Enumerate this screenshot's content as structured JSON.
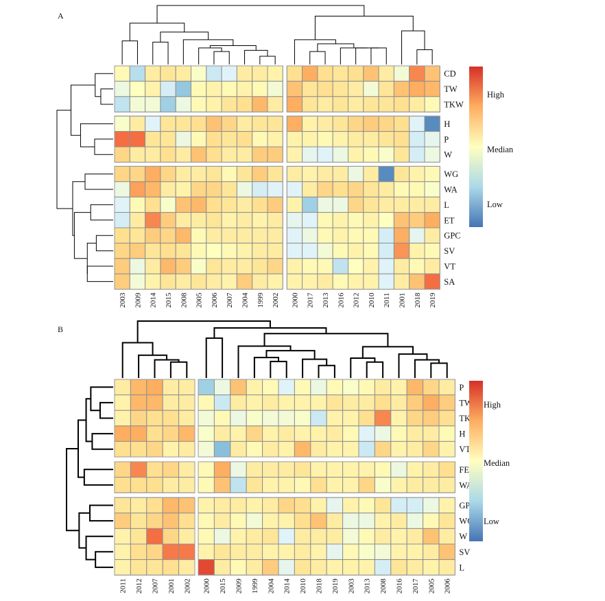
{
  "colors": {
    "high": "#d73027",
    "upper": "#f46d43",
    "warm": "#fdae61",
    "mid_warm": "#fee090",
    "median": "#ffffbf",
    "mid_cool": "#e0f3f8",
    "cool": "#abd9e9",
    "low_cool": "#74add1",
    "low": "#4575b4",
    "grid": "#8f8f8f"
  },
  "chart_data": [
    {
      "type": "heatmap",
      "panel": "A",
      "rows": [
        "CD",
        "TW",
        "TKW",
        "H",
        "P",
        "W",
        "WG",
        "WA",
        "L",
        "ET",
        "GPC",
        "SV",
        "VT",
        "SA"
      ],
      "row_groups": [
        3,
        3,
        8
      ],
      "columns": [
        "2003",
        "2009",
        "2014",
        "2015",
        "2008",
        "2005",
        "2006",
        "2007",
        "2004",
        "1999",
        "2002",
        "2000",
        "2017",
        "2013",
        "2016",
        "2012",
        "2010",
        "2011",
        "2001",
        "2018",
        "2019"
      ],
      "column_groups": [
        11,
        10
      ],
      "value_range": [
        -2,
        2
      ],
      "values": [
        [
          0.1,
          -0.9,
          0.3,
          0.4,
          0.3,
          -0.1,
          -0.7,
          -0.5,
          0.3,
          0.3,
          0.2,
          0.5,
          1.0,
          0.5,
          0.4,
          0.5,
          0.8,
          0.3,
          -0.2,
          1.3,
          0.8
        ],
        [
          -0.3,
          0.0,
          0.2,
          -0.6,
          -1.2,
          0.1,
          0.2,
          0.1,
          0.2,
          0.1,
          -0.2,
          0.8,
          0.4,
          0.5,
          0.4,
          0.3,
          -0.2,
          0.4,
          0.8,
          1.0,
          0.9
        ],
        [
          -0.8,
          -0.2,
          -0.2,
          -1.1,
          -0.3,
          0.1,
          0.2,
          0.4,
          0.5,
          0.9,
          0.3,
          1.0,
          0.4,
          0.3,
          0.4,
          0.3,
          0.4,
          0.4,
          0.5,
          0.3,
          0.1
        ],
        [
          -0.1,
          0.3,
          -0.5,
          0.4,
          0.4,
          0.5,
          0.8,
          0.6,
          0.3,
          0.4,
          0.4,
          1.0,
          0.2,
          0.3,
          0.4,
          0.6,
          0.7,
          0.6,
          0.5,
          -0.5,
          -1.8
        ],
        [
          1.5,
          1.5,
          0.4,
          0.4,
          -0.3,
          0.1,
          0.5,
          0.4,
          0.5,
          0.1,
          0.2,
          0.2,
          0.2,
          0.1,
          0.2,
          0.3,
          0.3,
          0.4,
          0.5,
          -0.6,
          -0.4
        ],
        [
          0.6,
          0.3,
          0.3,
          0.5,
          0.3,
          0.8,
          0.5,
          0.3,
          0.3,
          0.7,
          0.7,
          0.2,
          -0.4,
          -0.5,
          -0.3,
          0.2,
          0.1,
          -0.1,
          0.4,
          -0.6,
          -0.3
        ],
        [
          0.6,
          0.6,
          1.0,
          0.6,
          0.3,
          0.3,
          0.4,
          0.1,
          0.4,
          0.7,
          0.4,
          0.3,
          0.2,
          0.3,
          0.3,
          -0.3,
          0.3,
          -1.8,
          0.4,
          0.2,
          0.1
        ],
        [
          -0.3,
          1.1,
          0.9,
          0.3,
          0.2,
          0.6,
          0.6,
          0.4,
          -0.3,
          -0.6,
          -0.5,
          -0.5,
          0.3,
          0.6,
          0.5,
          0.6,
          0.4,
          0.3,
          0.1,
          0.1,
          -0.1
        ],
        [
          -0.5,
          0.1,
          0.5,
          -0.1,
          0.8,
          0.9,
          0.5,
          0.4,
          0.3,
          0.5,
          0.7,
          0.2,
          -1.1,
          -0.3,
          -0.3,
          0.6,
          0.4,
          0.3,
          0.3,
          0.3,
          0.3
        ],
        [
          -0.6,
          0.3,
          1.3,
          0.7,
          0.3,
          0.3,
          0.4,
          0.2,
          0.3,
          0.2,
          0.3,
          -0.4,
          -0.5,
          0.1,
          0.2,
          0.1,
          0.2,
          0.0,
          0.8,
          0.7,
          1.0
        ],
        [
          0.5,
          0.4,
          0.7,
          0.6,
          0.9,
          0.1,
          0.3,
          0.3,
          0.3,
          0.3,
          0.3,
          -0.5,
          -0.3,
          0.1,
          0.2,
          0.1,
          0.1,
          -0.6,
          1.0,
          -0.4,
          0.3
        ],
        [
          0.6,
          0.7,
          0.4,
          0.5,
          0.4,
          0.1,
          0.0,
          0.1,
          0.2,
          0.3,
          0.3,
          -0.5,
          -0.5,
          -0.2,
          0.1,
          0.2,
          0.1,
          -0.6,
          1.2,
          0.2,
          0.1
        ],
        [
          0.7,
          -0.3,
          0.3,
          0.9,
          0.7,
          -0.1,
          0.4,
          0.3,
          0.3,
          0.4,
          0.6,
          0.2,
          0.1,
          0.1,
          -0.8,
          0.0,
          0.2,
          -0.5,
          0.3,
          0.1,
          0.3
        ],
        [
          0.7,
          -0.2,
          0.2,
          0.4,
          0.3,
          0.4,
          0.3,
          0.2,
          0.7,
          0.3,
          0.2,
          0.2,
          0.2,
          0.3,
          0.1,
          0.2,
          0.2,
          -0.5,
          0.3,
          0.8,
          1.5
        ]
      ]
    },
    {
      "type": "heatmap",
      "panel": "B",
      "rows": [
        "P",
        "TW",
        "TKW",
        "H",
        "VT",
        "FER",
        "WA",
        "GPC",
        "WG",
        "W",
        "SV",
        "L"
      ],
      "row_groups": [
        5,
        2,
        5
      ],
      "columns": [
        "2011",
        "2012",
        "2007",
        "2001",
        "2002",
        "2000",
        "2015",
        "2009",
        "1999",
        "2004",
        "2014",
        "2010",
        "2018",
        "2019",
        "2003",
        "2013",
        "2008",
        "2016",
        "2017",
        "2005",
        "2006"
      ],
      "column_groups": [
        5,
        16
      ],
      "value_range": [
        -2,
        2
      ],
      "values": [
        [
          0.3,
          0.9,
          1.0,
          0.3,
          0.3,
          -1.1,
          -0.3,
          0.8,
          0.2,
          0.1,
          -0.5,
          0.1,
          -0.3,
          0.1,
          -0.1,
          0.1,
          0.3,
          0.2,
          0.9,
          0.6,
          0.3
        ],
        [
          0.2,
          0.9,
          0.9,
          0.3,
          0.3,
          0.1,
          -0.7,
          0.3,
          0.2,
          0.3,
          0.2,
          0.2,
          0.2,
          0.4,
          0.3,
          0.3,
          0.5,
          0.3,
          0.7,
          1.0,
          0.7
        ],
        [
          0.2,
          0.6,
          0.5,
          0.5,
          0.3,
          -0.2,
          0.1,
          -0.3,
          -0.1,
          -0.2,
          -0.2,
          -0.1,
          -0.7,
          0.2,
          0.2,
          0.5,
          1.3,
          0.2,
          0.6,
          0.7,
          0.5
        ],
        [
          1.0,
          1.0,
          0.5,
          0.6,
          0.9,
          -0.1,
          0.3,
          0.2,
          0.6,
          0.2,
          0.3,
          0.2,
          0.2,
          0.3,
          0.1,
          -0.5,
          -0.3,
          0.1,
          0.3,
          0.3,
          0.1
        ],
        [
          0.5,
          0.5,
          0.6,
          0.2,
          0.3,
          -0.2,
          -1.3,
          0.3,
          0.1,
          0.3,
          0.2,
          0.9,
          0.3,
          0.2,
          0.2,
          -0.7,
          0.6,
          0.2,
          0.3,
          0.6,
          0.2
        ],
        [
          0.6,
          1.3,
          0.5,
          0.6,
          0.3,
          0.1,
          1.0,
          -0.3,
          0.3,
          0.3,
          0.3,
          0.4,
          0.2,
          0.2,
          0.2,
          0.2,
          0.1,
          -0.3,
          0.2,
          0.3,
          0.5
        ],
        [
          0.5,
          0.5,
          0.5,
          0.3,
          0.3,
          0.1,
          0.8,
          -0.8,
          0.4,
          0.2,
          0.2,
          0.1,
          0.5,
          0.2,
          0.2,
          0.6,
          -0.1,
          0.2,
          0.3,
          0.3,
          0.3
        ],
        [
          0.4,
          0.3,
          0.5,
          0.9,
          0.8,
          0.2,
          0.3,
          0.3,
          0.2,
          0.3,
          0.6,
          0.5,
          0.2,
          -0.4,
          0.2,
          0.1,
          0.4,
          -0.6,
          -0.6,
          -0.3,
          0.2
        ],
        [
          0.7,
          0.4,
          0.6,
          0.8,
          0.5,
          0.1,
          0.3,
          0.1,
          -0.2,
          0.2,
          0.2,
          0.5,
          0.8,
          0.3,
          -0.3,
          -0.3,
          0.2,
          0.3,
          -0.3,
          0.1,
          0.4
        ],
        [
          0.2,
          0.4,
          1.5,
          0.6,
          0.3,
          0.1,
          -0.3,
          0.2,
          0.3,
          0.4,
          -0.5,
          0.3,
          0.3,
          0.3,
          -0.2,
          0.1,
          0.3,
          0.2,
          0.3,
          0.8,
          0.3
        ],
        [
          0.2,
          0.5,
          0.6,
          1.4,
          1.4,
          0.2,
          0.4,
          0.3,
          0.3,
          0.2,
          0.2,
          0.3,
          0.2,
          -0.4,
          0.1,
          -0.1,
          -0.2,
          0.2,
          0.2,
          0.3,
          0.8
        ],
        [
          0.2,
          0.4,
          0.4,
          0.5,
          0.3,
          1.8,
          0.3,
          0.1,
          0.3,
          0.7,
          -0.4,
          0.4,
          0.3,
          0.2,
          0.2,
          0.2,
          -0.6,
          0.4,
          0.3,
          0.2,
          0.3
        ]
      ]
    }
  ],
  "legend": {
    "high_label": "High",
    "median_label": "Median",
    "low_label": "Low"
  }
}
